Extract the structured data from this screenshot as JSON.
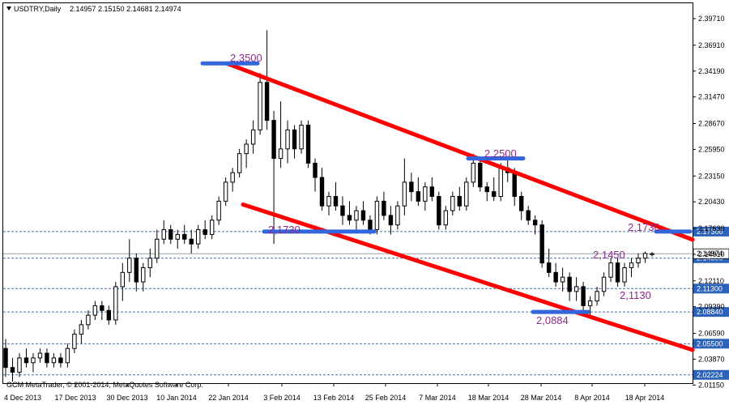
{
  "chart_data": {
    "type": "candlestick",
    "header": {
      "symbol": "USDTRY,Daily",
      "ohlc": "2.14957 2.15150 2.14681 2.14974"
    },
    "copyright": "GCM MetaTrader, © 2001-2014, MetaQuotes Software Corp.",
    "ylim": [
      2.0135,
      2.4133
    ],
    "y_ticks": [
      "2.39710",
      "2.36910",
      "2.34190",
      "2.31470",
      "2.28670",
      "2.25950",
      "2.23150",
      "2.20430",
      "2.17630",
      "2.14910",
      "2.12110",
      "2.09390",
      "2.06590",
      "2.03870",
      "2.01150"
    ],
    "x_ticks": [
      "4 Dec 2013",
      "17 Dec 2013",
      "30 Dec 2013",
      "10 Jan 2014",
      "22 Jan 2014",
      "3 Feb 2014",
      "13 Feb 2014",
      "25 Feb 2014",
      "7 Mar 2014",
      "18 Mar 2014",
      "28 Mar 2014",
      "8 Apr 2014",
      "18 Apr 2014"
    ],
    "levels": [
      {
        "value": 2.173,
        "label": "2.17300"
      },
      {
        "value": 2.145,
        "label": "2.14500"
      },
      {
        "value": 2.113,
        "label": "2.11300"
      },
      {
        "value": 2.0884,
        "label": "2.08840"
      },
      {
        "value": 2.055,
        "label": "2.05500"
      },
      {
        "value": 2.0222,
        "label": "2.02224"
      }
    ],
    "current_price": {
      "value": 2.1497,
      "label": "2.14974"
    },
    "annotations": [
      "2,3500",
      "2,2500",
      "2,1730",
      "2,1730",
      "2,1450",
      "2,1130",
      "2,0884"
    ],
    "channel_color": "#ff0000",
    "level_bar_color": "#3366dd",
    "candles": [
      [
        2.05,
        2.06,
        2.02,
        2.03
      ],
      [
        2.03,
        2.04,
        2.015,
        2.025
      ],
      [
        2.025,
        2.045,
        2.02,
        2.04
      ],
      [
        2.04,
        2.05,
        2.03,
        2.035
      ],
      [
        2.035,
        2.045,
        2.025,
        2.04
      ],
      [
        2.04,
        2.05,
        2.035,
        2.045
      ],
      [
        2.045,
        2.05,
        2.03,
        2.035
      ],
      [
        2.035,
        2.045,
        2.03,
        2.04
      ],
      [
        2.04,
        2.045,
        2.03,
        2.035
      ],
      [
        2.035,
        2.055,
        2.03,
        2.05
      ],
      [
        2.05,
        2.07,
        2.045,
        2.065
      ],
      [
        2.065,
        2.08,
        2.055,
        2.075
      ],
      [
        2.075,
        2.09,
        2.07,
        2.085
      ],
      [
        2.085,
        2.1,
        2.08,
        2.095
      ],
      [
        2.095,
        2.1,
        2.08,
        2.09
      ],
      [
        2.09,
        2.095,
        2.075,
        2.08
      ],
      [
        2.08,
        2.12,
        2.075,
        2.115
      ],
      [
        2.115,
        2.14,
        2.1,
        2.13
      ],
      [
        2.13,
        2.165,
        2.12,
        2.145
      ],
      [
        2.145,
        2.15,
        2.11,
        2.12
      ],
      [
        2.12,
        2.14,
        2.11,
        2.135
      ],
      [
        2.135,
        2.155,
        2.125,
        2.145
      ],
      [
        2.145,
        2.175,
        2.14,
        2.165
      ],
      [
        2.165,
        2.185,
        2.16,
        2.175
      ],
      [
        2.175,
        2.18,
        2.16,
        2.165
      ],
      [
        2.165,
        2.175,
        2.155,
        2.17
      ],
      [
        2.17,
        2.18,
        2.16,
        2.165
      ],
      [
        2.165,
        2.175,
        2.15,
        2.16
      ],
      [
        2.16,
        2.18,
        2.155,
        2.175
      ],
      [
        2.175,
        2.185,
        2.165,
        2.17
      ],
      [
        2.17,
        2.19,
        2.165,
        2.185
      ],
      [
        2.185,
        2.21,
        2.18,
        2.205
      ],
      [
        2.205,
        2.23,
        2.2,
        2.225
      ],
      [
        2.225,
        2.24,
        2.215,
        2.235
      ],
      [
        2.235,
        2.26,
        2.23,
        2.255
      ],
      [
        2.255,
        2.27,
        2.24,
        2.265
      ],
      [
        2.265,
        2.29,
        2.255,
        2.28
      ],
      [
        2.28,
        2.34,
        2.275,
        2.33
      ],
      [
        2.33,
        2.385,
        2.28,
        2.29
      ],
      [
        2.29,
        2.3,
        2.16,
        2.25
      ],
      [
        2.25,
        2.31,
        2.24,
        2.26
      ],
      [
        2.26,
        2.29,
        2.245,
        2.28
      ],
      [
        2.28,
        2.285,
        2.25,
        2.26
      ],
      [
        2.26,
        2.29,
        2.255,
        2.285
      ],
      [
        2.285,
        2.29,
        2.24,
        2.245
      ],
      [
        2.245,
        2.25,
        2.215,
        2.23
      ],
      [
        2.23,
        2.24,
        2.195,
        2.2
      ],
      [
        2.2,
        2.215,
        2.19,
        2.21
      ],
      [
        2.21,
        2.225,
        2.195,
        2.2
      ],
      [
        2.2,
        2.21,
        2.18,
        2.19
      ],
      [
        2.19,
        2.205,
        2.18,
        2.185
      ],
      [
        2.185,
        2.2,
        2.175,
        2.195
      ],
      [
        2.195,
        2.205,
        2.18,
        2.185
      ],
      [
        2.185,
        2.19,
        2.17,
        2.175
      ],
      [
        2.175,
        2.21,
        2.17,
        2.205
      ],
      [
        2.205,
        2.215,
        2.185,
        2.19
      ],
      [
        2.19,
        2.2,
        2.17,
        2.18
      ],
      [
        2.18,
        2.205,
        2.175,
        2.2
      ],
      [
        2.2,
        2.25,
        2.19,
        2.225
      ],
      [
        2.225,
        2.235,
        2.205,
        2.215
      ],
      [
        2.215,
        2.23,
        2.2,
        2.205
      ],
      [
        2.205,
        2.225,
        2.195,
        2.22
      ],
      [
        2.22,
        2.23,
        2.205,
        2.21
      ],
      [
        2.21,
        2.215,
        2.175,
        2.18
      ],
      [
        2.18,
        2.2,
        2.175,
        2.195
      ],
      [
        2.195,
        2.215,
        2.19,
        2.21
      ],
      [
        2.21,
        2.22,
        2.195,
        2.2
      ],
      [
        2.2,
        2.23,
        2.195,
        2.225
      ],
      [
        2.225,
        2.255,
        2.22,
        2.245
      ],
      [
        2.245,
        2.25,
        2.215,
        2.22
      ],
      [
        2.22,
        2.225,
        2.205,
        2.215
      ],
      [
        2.215,
        2.23,
        2.205,
        2.21
      ],
      [
        2.21,
        2.245,
        2.205,
        2.24
      ],
      [
        2.24,
        2.25,
        2.225,
        2.235
      ],
      [
        2.235,
        2.24,
        2.2,
        2.21
      ],
      [
        2.21,
        2.215,
        2.185,
        2.195
      ],
      [
        2.195,
        2.2,
        2.18,
        2.185
      ],
      [
        2.185,
        2.19,
        2.17,
        2.18
      ],
      [
        2.18,
        2.185,
        2.135,
        2.14
      ],
      [
        2.14,
        2.155,
        2.125,
        2.13
      ],
      [
        2.13,
        2.14,
        2.115,
        2.12
      ],
      [
        2.12,
        2.135,
        2.11,
        2.125
      ],
      [
        2.125,
        2.13,
        2.1,
        2.11
      ],
      [
        2.11,
        2.125,
        2.1,
        2.115
      ],
      [
        2.115,
        2.12,
        2.09,
        2.095
      ],
      [
        2.095,
        2.105,
        2.085,
        2.1
      ],
      [
        2.1,
        2.115,
        2.095,
        2.11
      ],
      [
        2.11,
        2.13,
        2.105,
        2.125
      ],
      [
        2.125,
        2.145,
        2.12,
        2.14
      ],
      [
        2.14,
        2.145,
        2.115,
        2.12
      ],
      [
        2.12,
        2.14,
        2.115,
        2.135
      ],
      [
        2.135,
        2.145,
        2.125,
        2.14
      ],
      [
        2.14,
        2.15,
        2.135,
        2.145
      ],
      [
        2.145,
        2.152,
        2.14,
        2.15
      ],
      [
        2.1496,
        2.1515,
        2.1468,
        2.1497
      ]
    ]
  }
}
